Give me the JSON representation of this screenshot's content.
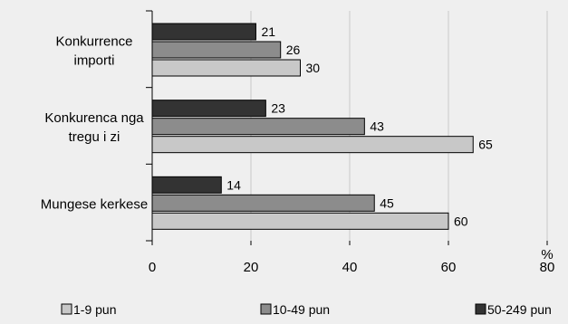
{
  "chart_data": {
    "type": "bar",
    "orientation": "horizontal",
    "categories": [
      [
        "Konkurrence",
        "importi"
      ],
      [
        "Konkurenca nga",
        "tregu i zi"
      ],
      [
        "Mungese kerkese"
      ]
    ],
    "series": [
      {
        "name": "50-249 pun",
        "values": [
          21,
          23,
          14
        ],
        "color": "#333333"
      },
      {
        "name": "10-49 pun",
        "values": [
          26,
          43,
          45
        ],
        "color": "#8c8c8c"
      },
      {
        "name": "1-9 pun",
        "values": [
          30,
          65,
          60
        ],
        "color": "#c8c8c8"
      }
    ],
    "legend_order": [
      "1-9 pun",
      "10-49 pun",
      "50-249 pun"
    ],
    "xlim": [
      0,
      80
    ],
    "xticks": [
      0,
      20,
      40,
      60,
      80
    ],
    "x_unit": "%",
    "grid": "vertical",
    "legend_position": "bottom"
  }
}
